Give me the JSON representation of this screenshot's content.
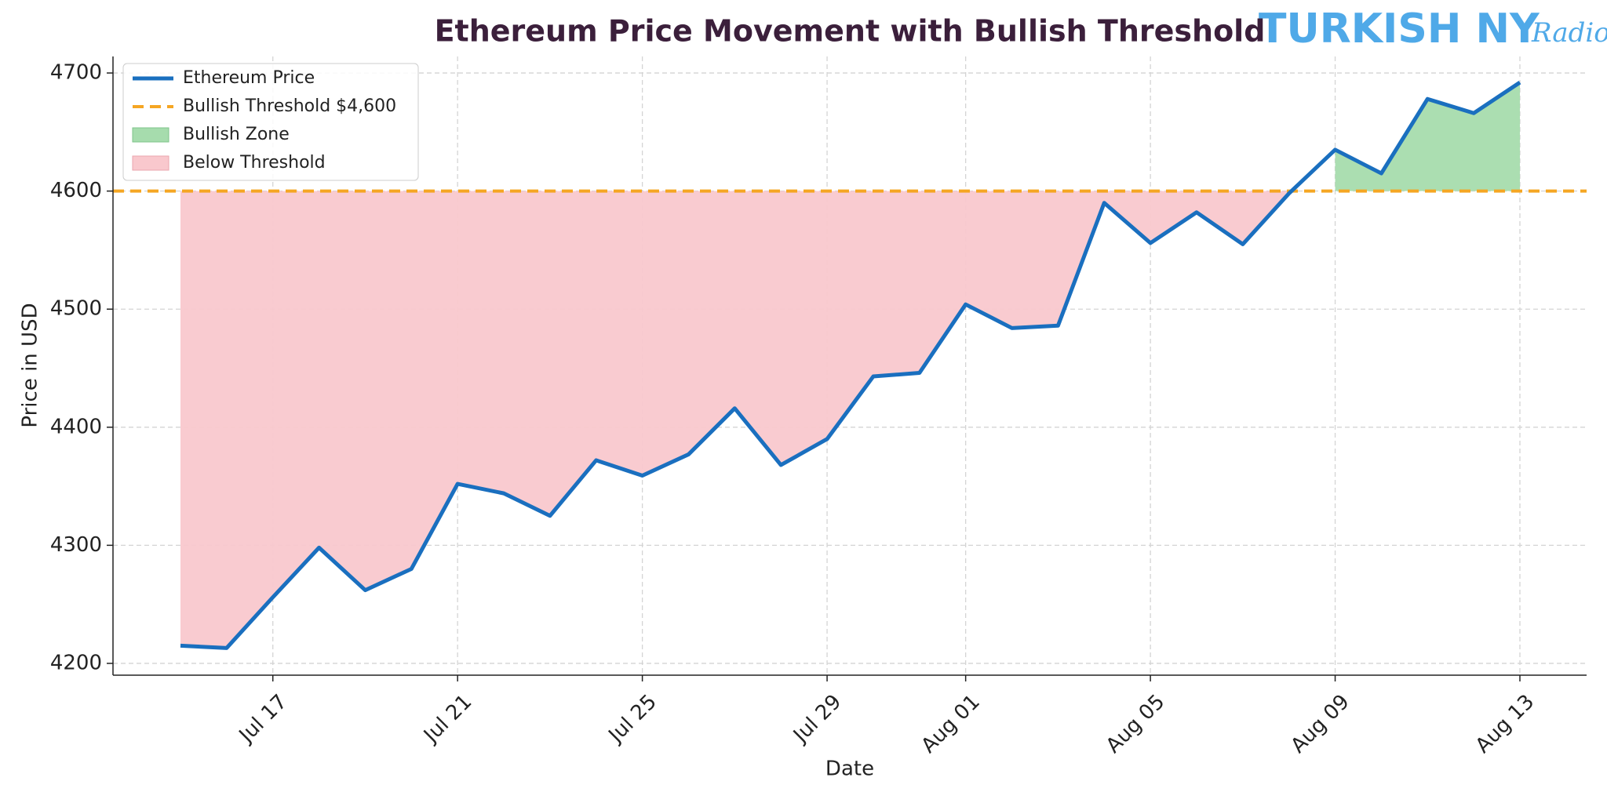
{
  "chart_data": {
    "type": "line",
    "title": "Ethereum Price Movement with Bullish Threshold",
    "watermark": {
      "main": "TURKISH NY",
      "script": "Radio"
    },
    "x_label": "Date",
    "y_label": "Price in USD",
    "x": [
      "Jul 15",
      "Jul 16",
      "Jul 17",
      "Jul 18",
      "Jul 19",
      "Jul 20",
      "Jul 21",
      "Jul 22",
      "Jul 23",
      "Jul 24",
      "Jul 25",
      "Jul 26",
      "Jul 27",
      "Jul 28",
      "Jul 29",
      "Jul 30",
      "Jul 31",
      "Aug 01",
      "Aug 02",
      "Aug 03",
      "Aug 04",
      "Aug 05",
      "Aug 06",
      "Aug 07",
      "Aug 08",
      "Aug 09",
      "Aug 10",
      "Aug 11",
      "Aug 12",
      "Aug 13"
    ],
    "xticks": [
      "Jul 17",
      "Jul 21",
      "Jul 25",
      "Jul 29",
      "Aug 01",
      "Aug 05",
      "Aug 09",
      "Aug 13"
    ],
    "series": [
      {
        "name": "Ethereum Price",
        "color": "#1a6fbf",
        "values": [
          4215,
          4213,
          4256,
          4298,
          4262,
          4280,
          4352,
          4344,
          4325,
          4372,
          4359,
          4377,
          4416,
          4368,
          4390,
          4443,
          4446,
          4504,
          4484,
          4486,
          4590,
          4556,
          4582,
          4555,
          4598,
          4635,
          4615,
          4678,
          4666,
          4692
        ]
      }
    ],
    "threshold": {
      "name": "Bullish Threshold $4,600",
      "value": 4600,
      "color": "#f5a623"
    },
    "zones": [
      {
        "name": "Bullish Zone",
        "color": "#a6dcad",
        "where": "above"
      },
      {
        "name": "Below Threshold",
        "color": "#f9c8cd",
        "where": "below"
      }
    ],
    "ylim": [
      4190,
      4714
    ],
    "yticks": [
      4200,
      4300,
      4400,
      4500,
      4600,
      4700
    ],
    "grid": true,
    "legend": "upper left"
  }
}
